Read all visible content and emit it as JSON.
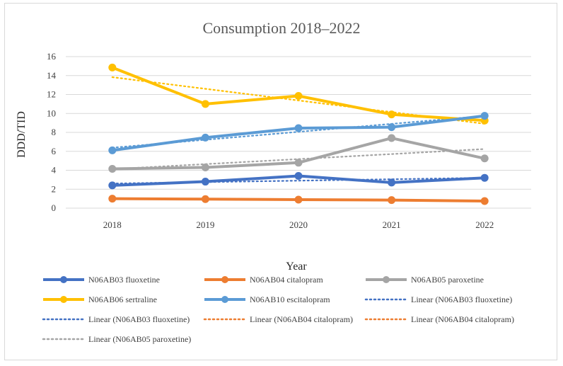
{
  "chart_data": {
    "type": "line",
    "title": "Consumption 2018–2022",
    "xlabel": "Year",
    "ylabel": "DDD/TID",
    "categories": [
      "2018",
      "2019",
      "2020",
      "2021",
      "2022"
    ],
    "ylim": [
      0,
      16
    ],
    "yticks": [
      0,
      2,
      4,
      6,
      8,
      10,
      12,
      14,
      16
    ],
    "grid": "horizontal",
    "legend_position": "bottom",
    "series": [
      {
        "name": "N06AB03 fluoxetine",
        "values": [
          2.4,
          2.8,
          3.4,
          2.7,
          3.2
        ],
        "color": "#4472c4"
      },
      {
        "name": "N06AB04 citalopram",
        "values": [
          1.0,
          0.95,
          0.9,
          0.85,
          0.75
        ],
        "color": "#ed7d31"
      },
      {
        "name": "N06AB05 paroxetine",
        "values": [
          4.15,
          4.3,
          4.8,
          7.4,
          5.25
        ],
        "color": "#a5a5a5"
      },
      {
        "name": "N06AB06 sertraline",
        "values": [
          14.85,
          11.0,
          11.85,
          9.9,
          9.25
        ],
        "color": "#ffc000"
      },
      {
        "name": "N06AB10 escitalopram",
        "values": [
          6.1,
          7.45,
          8.45,
          8.55,
          9.75
        ],
        "color": "#5b9bd5"
      }
    ],
    "trendlines": [
      {
        "name": "Linear (N06AB03 fluoxetine)",
        "type": "linear",
        "of": "N06AB03 fluoxetine",
        "color": "#4472c4"
      },
      {
        "name": "Linear (N06AB03 fluoxetine)",
        "type": "linear",
        "of": "N06AB03 fluoxetine",
        "color": "#4472c4"
      },
      {
        "name": "Linear (N06AB04 citalopram)",
        "type": "linear",
        "of": "N06AB04 citalopram",
        "color": "#ed7d31"
      },
      {
        "name": "Linear (N06AB04 citalopram)",
        "type": "linear",
        "of": "N06AB04 citalopram",
        "color": "#ed7d31"
      },
      {
        "name": "Linear (N06AB05 paroxetine)",
        "type": "linear",
        "of": "N06AB05 paroxetine",
        "color": "#a5a5a5"
      },
      {
        "name": "",
        "type": "linear",
        "of": "N06AB06 sertraline",
        "color": "#ffc000"
      },
      {
        "name": "",
        "type": "linear",
        "of": "N06AB10 escitalopram",
        "color": "#5b9bd5"
      }
    ],
    "legend_entries": [
      {
        "label": "N06AB03 fluoxetine",
        "style": "marker",
        "color": "#4472c4"
      },
      {
        "label": "N06AB04 citalopram",
        "style": "marker",
        "color": "#ed7d31"
      },
      {
        "label": "N06AB05 paroxetine",
        "style": "marker",
        "color": "#a5a5a5"
      },
      {
        "label": "N06AB06 sertraline",
        "style": "marker",
        "color": "#ffc000"
      },
      {
        "label": "N06AB10 escitalopram",
        "style": "marker",
        "color": "#5b9bd5"
      },
      {
        "label": "Linear (N06AB03 fluoxetine)",
        "style": "dotted",
        "color": "#4472c4"
      },
      {
        "label": "Linear (N06AB03 fluoxetine)",
        "style": "dotted",
        "color": "#4472c4"
      },
      {
        "label": "Linear (N06AB04 citalopram)",
        "style": "dotted",
        "color": "#ed7d31"
      },
      {
        "label": "Linear (N06AB04 citalopram)",
        "style": "dotted",
        "color": "#ed7d31"
      },
      {
        "label": "Linear (N06AB05 paroxetine)",
        "style": "dotted",
        "color": "#a5a5a5"
      }
    ]
  }
}
